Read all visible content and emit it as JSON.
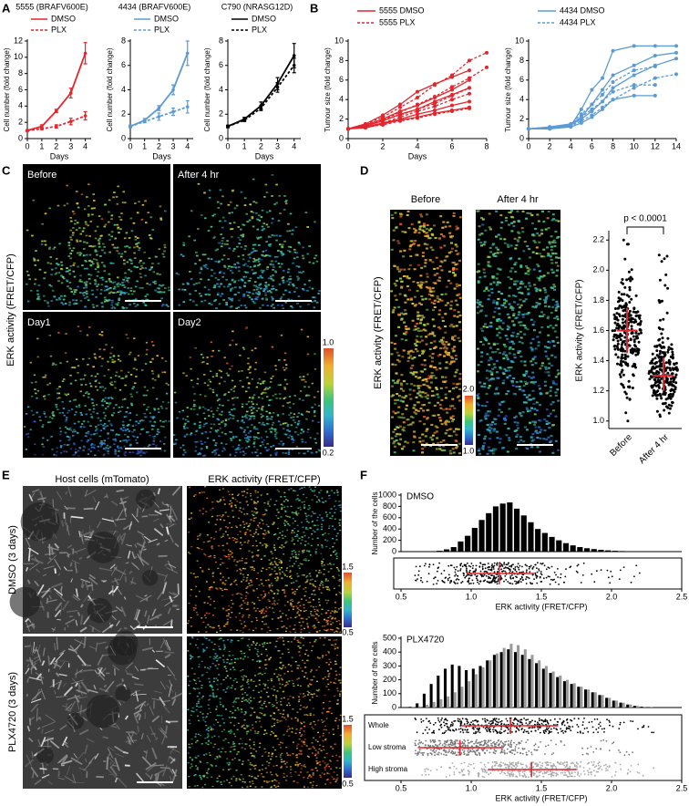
{
  "panel_labels": [
    "A",
    "B",
    "C",
    "D",
    "E",
    "F"
  ],
  "panel_C": {
    "ylabel": "ERK activity (FRET/CFP)",
    "images": [
      "Before",
      "After 4 hr",
      "Day1",
      "Day2"
    ],
    "colorbar": [
      "1.0",
      "0.2"
    ]
  },
  "panel_D": {
    "ylabel": "ERK activity (FRET/CFP)",
    "images": [
      "Before",
      "After 4 hr"
    ],
    "colorbar": [
      "2.0",
      "1.0"
    ]
  },
  "panel_E": {
    "columns": [
      "Host cells (mTomato)",
      "ERK activity (FRET/CFP)"
    ],
    "rows": [
      "DMSO (3 days)",
      "PLX4720 (3 days)"
    ],
    "colorbar": [
      "1.5",
      "0.5"
    ]
  },
  "chart_data": [
    {
      "type": "line",
      "title": "5555 (BRAFV600E)",
      "x": [
        0,
        1,
        2,
        3,
        4
      ],
      "xlim": [
        0,
        4.4
      ],
      "xticks": [
        0,
        1,
        2,
        3,
        4
      ],
      "ylim": [
        0,
        12
      ],
      "yticks": [
        0,
        2,
        4,
        6,
        8,
        10,
        12
      ],
      "xlabel": "Days",
      "ylabel": "Cell number (fold change)",
      "legend": "top-left",
      "series": [
        {
          "name": "DMSO",
          "color": "#e3262e",
          "style": "solid",
          "values": [
            1,
            1.5,
            3.4,
            5.6,
            10.5
          ],
          "errors": [
            0.1,
            0.2,
            0.2,
            0.6,
            1.3
          ]
        },
        {
          "name": "PLX",
          "color": "#e3262e",
          "style": "dashed",
          "values": [
            1,
            1.2,
            1.5,
            2.1,
            2.8
          ],
          "errors": [
            0.1,
            0.1,
            0.2,
            0.4,
            0.5
          ]
        }
      ]
    },
    {
      "type": "line",
      "title": "4434 (BRAFV600E)",
      "x": [
        0,
        1,
        2,
        3,
        4
      ],
      "xlim": [
        0,
        4.4
      ],
      "xticks": [
        0,
        1,
        2,
        3,
        4
      ],
      "ylim": [
        0,
        8
      ],
      "yticks": [
        0,
        2,
        4,
        6,
        8
      ],
      "xlabel": "Days",
      "ylabel": "Cell number (fold change)",
      "legend": "top-left",
      "series": [
        {
          "name": "DMSO",
          "color": "#5b9bd5",
          "style": "solid",
          "values": [
            1,
            1.5,
            2.5,
            4,
            7
          ],
          "errors": [
            0.1,
            0.15,
            0.2,
            0.4,
            1.0
          ]
        },
        {
          "name": "PLX",
          "color": "#5b9bd5",
          "style": "dashed",
          "values": [
            1,
            1.4,
            1.8,
            2.2,
            2.6
          ],
          "errors": [
            0.1,
            0.1,
            0.3,
            0.3,
            0.5
          ]
        }
      ]
    },
    {
      "type": "line",
      "title": "C790 (NRASG12D)",
      "x": [
        0,
        1,
        2,
        3,
        4
      ],
      "xlim": [
        0,
        4.4
      ],
      "xticks": [
        0,
        1,
        2,
        3,
        4
      ],
      "ylim": [
        0,
        8
      ],
      "yticks": [
        0,
        2,
        4,
        6,
        8
      ],
      "xlabel": "Days",
      "ylabel": "Cell number (fold change)",
      "legend": "top-left",
      "series": [
        {
          "name": "DMSO",
          "color": "#000000",
          "style": "solid",
          "values": [
            1,
            1.6,
            2.7,
            4.5,
            6.8
          ],
          "errors": [
            0.1,
            0.15,
            0.3,
            0.5,
            1.0
          ]
        },
        {
          "name": "PLX",
          "color": "#000000",
          "style": "dashed",
          "values": [
            1,
            1.5,
            2.5,
            4.2,
            6
          ],
          "errors": [
            0.1,
            0.1,
            0.2,
            0.4,
            0.6
          ]
        }
      ]
    },
    {
      "type": "multiline",
      "x": [
        0,
        1,
        2,
        3,
        4,
        5,
        6,
        7,
        8
      ],
      "xlim": [
        0,
        8
      ],
      "xticks": [
        0,
        2,
        4,
        6,
        8
      ],
      "ylim": [
        0,
        10
      ],
      "yticks": [
        0,
        2,
        4,
        6,
        8,
        10
      ],
      "xlabel": "Days",
      "ylabel": "Tumour size (fold change)",
      "legend": "top-left",
      "series": [
        {
          "name": "5555 DMSO",
          "color": "#e3262e",
          "style": "solid",
          "lines": [
            [
              1,
              1.3,
              1.8,
              2.5,
              3.0,
              3.8,
              4.5,
              5.2,
              null
            ],
            [
              1,
              1.5,
              2.4,
              3.5,
              4.8,
              5.6,
              6.3,
              7.0,
              null
            ],
            [
              1,
              1.2,
              1.6,
              2.0,
              2.5,
              2.9,
              3.4,
              3.8,
              null
            ],
            [
              1,
              1.4,
              2.0,
              2.8,
              3.4,
              4.2,
              5.0,
              6.0,
              null
            ],
            [
              1,
              1.1,
              1.5,
              1.9,
              2.2,
              2.6,
              2.9,
              3.2,
              null
            ]
          ]
        },
        {
          "name": "5555 PLX",
          "color": "#e3262e",
          "style": "dashed",
          "lines": [
            [
              1,
              1.5,
              2.2,
              3.2,
              4.2,
              5.5,
              6.5,
              8.0,
              8.8
            ],
            [
              1,
              1.3,
              1.9,
              2.7,
              3.5,
              4.3,
              5.3,
              6.2,
              7.3
            ],
            [
              1,
              1.2,
              1.6,
              2.2,
              2.8,
              3.3,
              4.0,
              4.6,
              null
            ],
            [
              1,
              1.4,
              1.9,
              2.4,
              3.0,
              3.6,
              4.4,
              5.2,
              null
            ],
            [
              1,
              1.2,
              1.4,
              1.8,
              2.1,
              2.5,
              2.8,
              3.1,
              null
            ]
          ]
        }
      ]
    },
    {
      "type": "multiline",
      "x": [
        0,
        2,
        4,
        5,
        6,
        7,
        8,
        10,
        12,
        14
      ],
      "xlim": [
        0,
        14
      ],
      "xticks": [
        0,
        2,
        4,
        6,
        8,
        10,
        12,
        14
      ],
      "ylim": [
        0,
        10
      ],
      "yticks": [
        0,
        2,
        4,
        6,
        8,
        10
      ],
      "ylabel": "Tumour size (fold change)",
      "legend": "top-left",
      "series": [
        {
          "name": "4434 DMSO",
          "color": "#5b9bd5",
          "style": "solid",
          "lines": [
            [
              1,
              1.1,
              1.3,
              3.0,
              5.0,
              6.2,
              9.0,
              9.5,
              9.5,
              9.5
            ],
            [
              1,
              1.2,
              1.5,
              2.2,
              3.5,
              5.0,
              6.5,
              7.5,
              8.5,
              8.8
            ],
            [
              1,
              1.1,
              1.4,
              2.0,
              2.8,
              3.8,
              5.2,
              6.5,
              7.5,
              8.2
            ],
            [
              1,
              1.0,
              1.2,
              1.6,
              2.2,
              3.0,
              4.0,
              4.4,
              4.4,
              null
            ]
          ]
        },
        {
          "name": "4434 PLX",
          "color": "#5b9bd5",
          "style": "dashed",
          "lines": [
            [
              1,
              1.1,
              1.5,
              2.5,
              3.5,
              4.5,
              5.8,
              7.0,
              7.4,
              null
            ],
            [
              1,
              1.0,
              1.3,
              1.8,
              2.4,
              3.2,
              4.0,
              5.2,
              6.2,
              6.6
            ],
            [
              1,
              1.1,
              1.4,
              2.2,
              3.0,
              3.8,
              4.8,
              5.5,
              5.5,
              null
            ]
          ]
        }
      ]
    },
    {
      "type": "dot",
      "categories": [
        "Before",
        "After 4 hr"
      ],
      "ylim": [
        0.95,
        2.25
      ],
      "yticks": [
        {
          "value": 1,
          "label": "1.0"
        },
        1.2,
        1.4,
        1.6,
        1.8,
        {
          "value": 2,
          "label": "2.0"
        },
        2.2
      ],
      "ylabel": "ERK activity (FRET/CFP)",
      "annotation": "p < 0.0001",
      "groups": [
        {
          "mean": 1.6,
          "low": 1.45,
          "high": 1.75,
          "min": 1.0,
          "max": 2.2
        },
        {
          "mean": 1.3,
          "low": 1.2,
          "high": 1.42,
          "min": 1.03,
          "max": 2.1
        }
      ]
    },
    {
      "type": "histogram",
      "title": "DMSO",
      "bins": [
        0.5,
        0.55,
        0.6,
        0.65,
        0.7,
        0.75,
        0.8,
        0.85,
        0.9,
        0.95,
        1,
        1.05,
        1.1,
        1.15,
        1.2,
        1.25,
        1.3,
        1.35,
        1.4,
        1.45,
        1.5,
        1.55,
        1.6,
        1.65,
        1.7,
        1.75,
        1.8,
        1.85,
        1.9,
        1.95,
        2,
        2.05,
        2.1,
        2.15,
        2.2,
        2.25,
        2.3,
        2.35,
        2.4,
        2.45,
        2.5
      ],
      "xlim": [
        0.5,
        2.5
      ],
      "xticks": [
        0.5,
        {
          "value": 1,
          "label": "1.0"
        },
        1.5,
        {
          "value": 2,
          "label": "2.0"
        },
        2.5
      ],
      "ylim": [
        0,
        1000
      ],
      "yticks": [
        0,
        200,
        400,
        600,
        800,
        1000
      ],
      "ylabel": "Number of the cells",
      "xlabel": "ERK activity (FRET/CFP)",
      "series": [
        {
          "color": "#000000",
          "values": [
            0,
            0,
            0,
            0,
            0,
            15,
            40,
            80,
            180,
            280,
            420,
            560,
            680,
            800,
            850,
            870,
            760,
            640,
            520,
            400,
            330,
            260,
            200,
            150,
            110,
            80,
            60,
            45,
            32,
            22,
            15,
            10,
            6,
            3,
            2,
            0,
            0,
            0,
            0,
            0
          ]
        }
      ],
      "strips": [
        {
          "color": "#000000",
          "mean": 1.2,
          "low": 0.97,
          "high": 1.45,
          "min": 0.6,
          "max": 2.2
        }
      ]
    },
    {
      "type": "histogram",
      "title": "PLX4720",
      "bins": [
        0.5,
        0.55,
        0.6,
        0.65,
        0.7,
        0.75,
        0.8,
        0.85,
        0.9,
        0.95,
        1,
        1.05,
        1.1,
        1.15,
        1.2,
        1.25,
        1.3,
        1.35,
        1.4,
        1.45,
        1.5,
        1.55,
        1.6,
        1.65,
        1.7,
        1.75,
        1.8,
        1.85,
        1.9,
        1.95,
        2,
        2.05,
        2.1,
        2.15,
        2.2,
        2.25,
        2.3,
        2.35,
        2.4,
        2.45,
        2.5
      ],
      "xlim": [
        0.5,
        2.5
      ],
      "xticks": [
        0.5,
        {
          "value": 1,
          "label": "1.0"
        },
        1.5,
        {
          "value": 2,
          "label": "2.0"
        },
        2.5
      ],
      "ylim": [
        0,
        500
      ],
      "yticks": [
        0,
        100,
        200,
        300,
        400,
        500
      ],
      "ylabel": "Number of the cells",
      "xlabel": "ERK activity (FRET/CFP)",
      "series": [
        {
          "color": "#000000",
          "values": [
            0,
            5,
            30,
            100,
            170,
            230,
            280,
            310,
            300,
            270,
            280,
            300,
            340,
            380,
            400,
            420,
            400,
            380,
            350,
            320,
            280,
            250,
            220,
            190,
            170,
            150,
            130,
            110,
            90,
            70,
            50,
            35,
            22,
            12,
            6,
            2,
            0,
            0,
            0,
            0
          ]
        },
        {
          "color": "#9a9a9a",
          "values": [
            0,
            2,
            8,
            20,
            40,
            60,
            80,
            110,
            150,
            190,
            240,
            290,
            340,
            390,
            430,
            460,
            450,
            420,
            380,
            340,
            300,
            260,
            230,
            200,
            175,
            150,
            130,
            110,
            90,
            70,
            50,
            35,
            22,
            12,
            6,
            2,
            0,
            0,
            0,
            0
          ]
        }
      ],
      "strips": [
        {
          "name": "Whole",
          "color": "#000000",
          "mean": 1.28,
          "low": 0.93,
          "high": 1.62,
          "min": 0.6,
          "max": 2.3
        },
        {
          "name": "Low stroma",
          "color": "#777777",
          "mean": 0.92,
          "low": 0.62,
          "high": 1.22,
          "min": 0.6,
          "max": 2.15
        },
        {
          "name": "High stroma",
          "color": "#aaaaaa",
          "mean": 1.43,
          "low": 1.12,
          "high": 1.75,
          "min": 0.65,
          "max": 2.3
        }
      ]
    }
  ]
}
